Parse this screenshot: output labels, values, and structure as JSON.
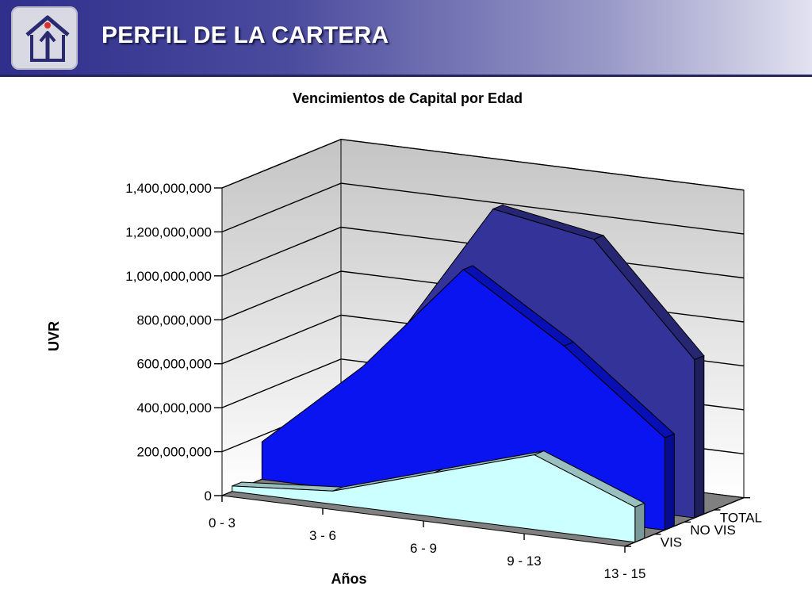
{
  "header": {
    "title": "PERFIL DE LA CARTERA",
    "logo_icon": "house-arrow-logo-icon"
  },
  "colors": {
    "header_dark": "#2f2f8c",
    "header_light": "#e2e2f0",
    "series_total": "#333399",
    "series_novis": "#0a14f0",
    "series_vis": "#ccffff",
    "floor": "#808080",
    "walls": "#e0e0e0"
  },
  "chart_data": {
    "type": "area",
    "view": "3d",
    "title": "Vencimientos de Capital por Edad",
    "xlabel": "Años",
    "ylabel": "UVR",
    "categories": [
      "0 - 3",
      "3 - 6",
      "6 - 9",
      "9 - 13",
      "13 - 15"
    ],
    "ylim": [
      0,
      1400000000
    ],
    "yticks": [
      "0",
      "200,000,000",
      "400,000,000",
      "600,000,000",
      "800,000,000",
      "1,000,000,000",
      "1,200,000,000",
      "1,400,000,000"
    ],
    "grid": true,
    "series": [
      {
        "name": "TOTAL",
        "values": [
          200000000,
          620000000,
          1290000000,
          1210000000,
          720000000
        ]
      },
      {
        "name": "NO VIS",
        "values": [
          170000000,
          570000000,
          1070000000,
          780000000,
          420000000
        ]
      },
      {
        "name": "VIS",
        "values": [
          25000000,
          60000000,
          200000000,
          340000000,
          160000000
        ]
      }
    ]
  }
}
